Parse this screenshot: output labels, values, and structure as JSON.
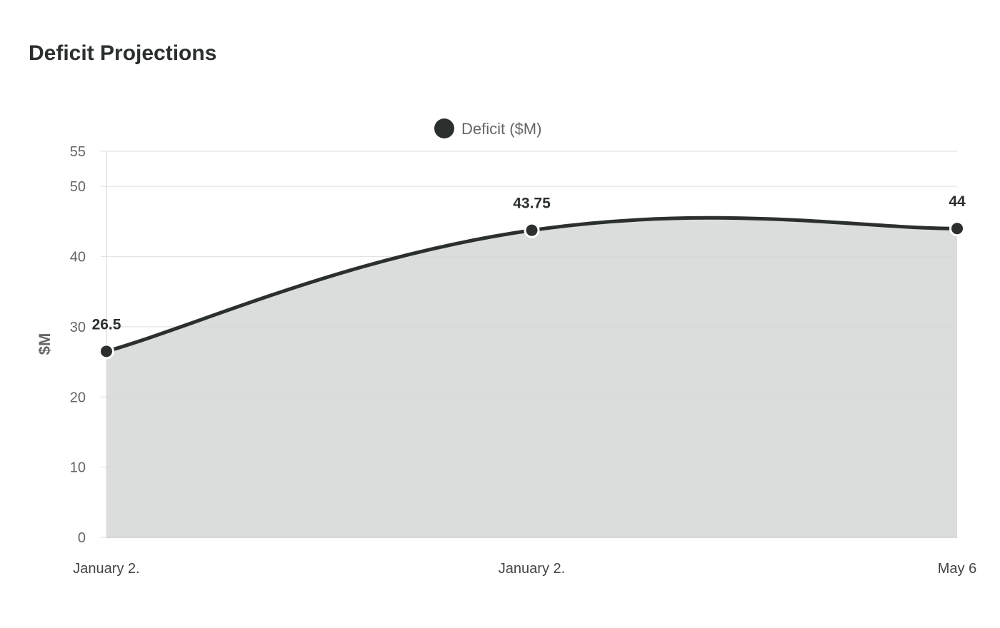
{
  "chart_data": {
    "type": "area",
    "title": "Deficit Projections",
    "xlabel": "",
    "ylabel": "$M",
    "categories": [
      "January 2.",
      "January 2.",
      "May 6"
    ],
    "series": [
      {
        "name": "Deficit ($M)",
        "values": [
          26.5,
          43.75,
          44
        ]
      }
    ],
    "data_labels": [
      "26.5",
      "43.75",
      "44"
    ],
    "ylim": [
      0,
      55
    ],
    "yticks": [
      0,
      10,
      20,
      30,
      40,
      50,
      55
    ],
    "grid": true,
    "legend_position": "top-center",
    "colors": {
      "line": "#2b2f2e",
      "fill": "#d5d6d6",
      "grid": "#e3e3e3",
      "tick_text": "#666666",
      "label_text": "#2b2f2e",
      "axis_title": "#666666"
    }
  }
}
